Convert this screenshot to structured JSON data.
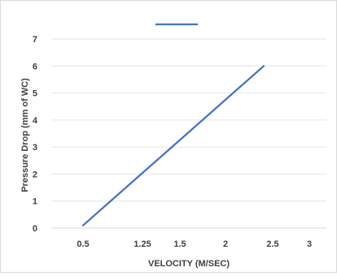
{
  "chart_data": {
    "type": "line",
    "title": "",
    "xlabel": "VELOCITY (M/SEC)",
    "ylabel": "Pressure Drop (mm of WC)",
    "x_tick_labels": [
      "0.5",
      "1.25",
      "1.5",
      "2",
      "2.5",
      "3"
    ],
    "y_ticks": [
      0,
      1,
      2,
      3,
      4,
      5,
      6,
      7
    ],
    "y_tick_labels": [
      "0",
      "1",
      "2",
      "3",
      "4",
      "5",
      "6",
      "7"
    ],
    "ylim": [
      0,
      7
    ],
    "grid": "horizontal",
    "legend": "top",
    "series": [
      {
        "color": "#4472c4",
        "points": [
          {
            "x": "0.5",
            "y": 0.1
          },
          {
            "x": "2.5",
            "y": 6.0
          }
        ]
      }
    ]
  }
}
